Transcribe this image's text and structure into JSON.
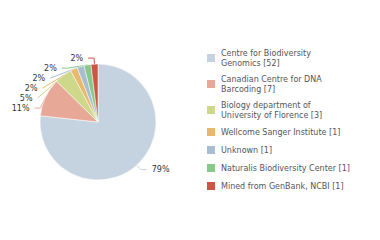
{
  "chart_data": {
    "type": "pie",
    "categories": [
      "Centre for Biodiversity\nGenomics [52]",
      "Canadian Centre for DNA\nBarcoding [7]",
      "Biology department of\nUniversity of Florence [3]",
      "Wellcome Sanger Institute [1]",
      "Unknown [1]",
      "Naturalis Biodiversity Center [1]",
      "Mined from GenBank, NCBI [1]"
    ],
    "values": [
      79,
      11,
      5,
      2,
      2,
      2,
      2
    ],
    "value_labels": [
      "79%",
      "11%",
      "5%",
      "2%",
      "2%",
      "2%",
      "2%"
    ],
    "colors": [
      "#c5d3e0",
      "#e8a898",
      "#cdd88a",
      "#e8b86c",
      "#a8bdd0",
      "#88c888",
      "#cc5544"
    ],
    "data_labels": true,
    "legend": "right"
  }
}
